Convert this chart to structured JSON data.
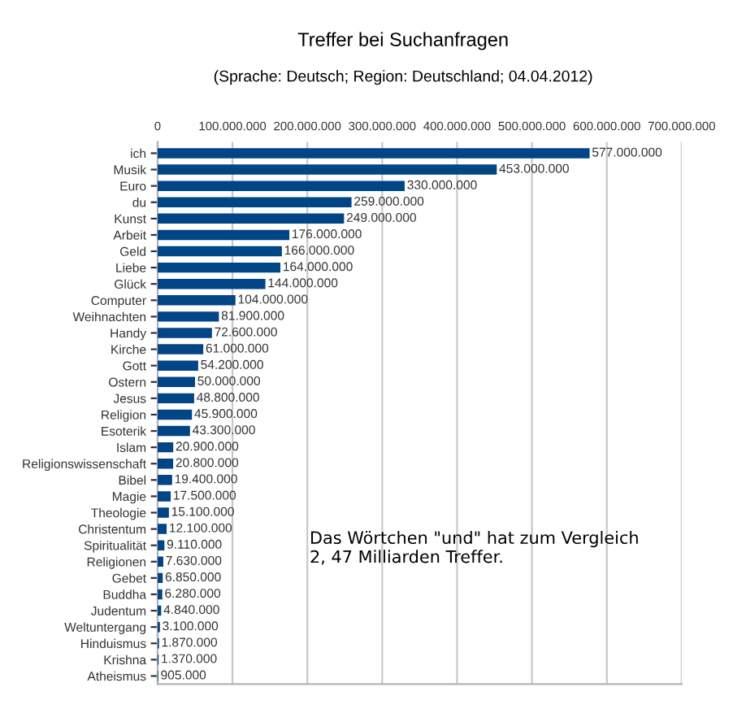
{
  "chart_data": {
    "type": "bar",
    "orientation": "horizontal",
    "title": "Treffer bei Suchanfragen",
    "subtitle": "(Sprache: Deutsch; Region: Deutschland; 04.04.2012)",
    "categories": [
      "ich",
      "Musik",
      "Euro",
      "du",
      "Kunst",
      "Arbeit",
      "Geld",
      "Liebe",
      "Glück",
      "Computer",
      "Weihnachten",
      "Handy",
      "Kirche",
      "Gott",
      "Ostern",
      "Jesus",
      "Religion",
      "Esoterik",
      "Islam",
      "Religionswissenschaft",
      "Bibel",
      "Magie",
      "Theologie",
      "Christentum",
      "Spiritualität",
      "Religionen",
      "Gebet",
      "Buddha",
      "Judentum",
      "Weltuntergang",
      "Hinduismus",
      "Krishna",
      "Atheismus"
    ],
    "values": [
      577000000,
      453000000,
      330000000,
      259000000,
      249000000,
      176000000,
      166000000,
      164000000,
      144000000,
      104000000,
      81900000,
      72600000,
      61000000,
      54200000,
      50000000,
      48800000,
      45900000,
      43300000,
      20900000,
      20800000,
      19400000,
      17500000,
      15100000,
      12100000,
      9110000,
      7630000,
      6850000,
      6280000,
      4840000,
      3100000,
      1870000,
      1370000,
      905000
    ],
    "value_labels": [
      "577.000.000",
      "453.000.000",
      "330.000.000",
      "259.000.000",
      "249.000.000",
      "176.000.000",
      "166.000.000",
      "164.000.000",
      "144.000.000",
      "104.000.000",
      "81.900.000",
      "72.600.000",
      "61.000.000",
      "54.200.000",
      "50.000.000",
      "48.800.000",
      "45.900.000",
      "43.300.000",
      "20.900.000",
      "20.800.000",
      "19.400.000",
      "17.500.000",
      "15.100.000",
      "12.100.000",
      "9.110.000",
      "7.630.000",
      "6.850.000",
      "6.280.000",
      "4.840.000",
      "3.100.000",
      "1.870.000",
      "1.370.000",
      "905.000"
    ],
    "color": "#004586",
    "xlim": [
      0,
      700000000
    ],
    "xticks": [
      0,
      {
        "value": 100000000,
        "label": "100.000.000"
      },
      {
        "value": 200000000,
        "label": "200.000.000"
      },
      {
        "value": 300000000,
        "label": "300.000.000"
      },
      {
        "value": 400000000,
        "label": "400.000.000"
      },
      {
        "value": 500000000,
        "label": "500.000.000"
      },
      {
        "value": 600000000,
        "label": "600.000.000"
      },
      {
        "value": 700000000,
        "label": "700.000.000"
      }
    ],
    "grid": "x",
    "annotations": [
      "Das Wörtchen \"und\" hat zum Vergleich\n2, 47 Milliarden Treffer."
    ]
  }
}
